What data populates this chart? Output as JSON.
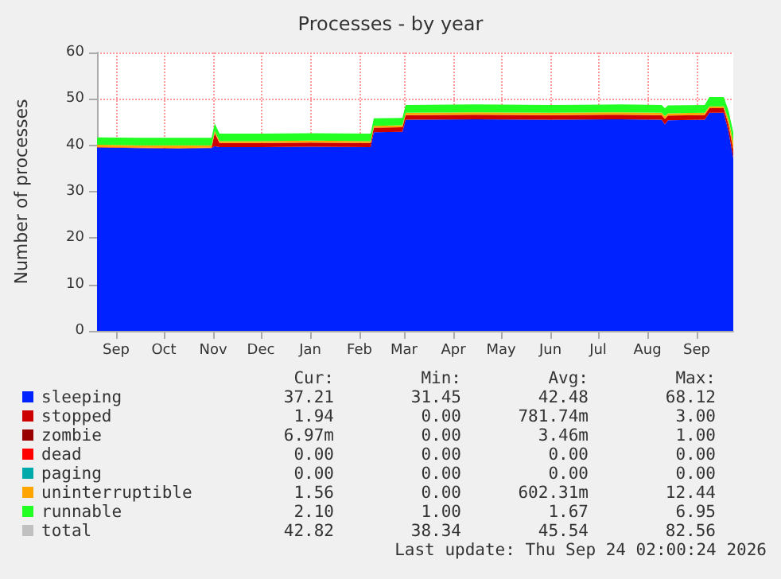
{
  "chart_data": {
    "type": "area",
    "title": "Processes - by year",
    "ylabel": "Number of processes",
    "stacked": true,
    "grid": true,
    "legend": "bottom",
    "x": [
      "2025-08-20",
      "2025-09-15",
      "2025-10-10",
      "2025-10-31",
      "2025-11-02",
      "2025-11-05",
      "2025-12-01",
      "2026-01-01",
      "2026-02-08",
      "2026-02-10",
      "2026-02-28",
      "2026-03-02",
      "2026-04-15",
      "2026-06-01",
      "2026-07-15",
      "2026-08-10",
      "2026-08-12",
      "2026-08-14",
      "2026-09-06",
      "2026-09-09",
      "2026-09-18",
      "2026-09-21",
      "2026-09-24"
    ],
    "series": [
      {
        "name": "sleeping",
        "color": "#0022ff",
        "values": [
          39.5,
          39.4,
          39.3,
          39.4,
          39.8,
          39.6,
          39.6,
          39.7,
          39.6,
          42.8,
          42.9,
          45.5,
          45.6,
          45.5,
          45.6,
          45.5,
          44.5,
          45.4,
          45.5,
          47.0,
          47.0,
          43.0,
          37.2
        ]
      },
      {
        "name": "stopped",
        "color": "#cc0000",
        "values": [
          0.1,
          0.1,
          0.1,
          0.1,
          2.8,
          0.9,
          0.9,
          0.9,
          0.9,
          1.0,
          1.0,
          1.0,
          1.0,
          1.0,
          1.0,
          1.0,
          1.2,
          1.0,
          1.0,
          1.0,
          1.0,
          1.5,
          1.9
        ]
      },
      {
        "name": "zombie",
        "color": "#990000",
        "values": [
          null,
          null,
          null,
          null,
          null,
          null,
          null,
          null,
          null,
          null,
          null,
          null,
          null,
          null,
          null,
          null,
          null,
          null,
          null,
          null,
          null,
          null,
          null
        ]
      },
      {
        "name": "dead",
        "color": "#ff0000",
        "values": [
          null,
          null,
          null,
          null,
          null,
          null,
          null,
          null,
          null,
          null,
          null,
          null,
          null,
          null,
          null,
          null,
          null,
          null,
          null,
          null,
          null,
          null,
          null
        ]
      },
      {
        "name": "paging",
        "color": "#00aaaa",
        "values": [
          null,
          null,
          null,
          null,
          null,
          null,
          null,
          null,
          null,
          null,
          null,
          null,
          null,
          null,
          null,
          null,
          null,
          null,
          null,
          null,
          null,
          null,
          null
        ]
      },
      {
        "name": "uninterruptible",
        "color": "#ffa500",
        "values": [
          0.5,
          0.5,
          0.6,
          0.5,
          0.5,
          0.4,
          0.4,
          0.4,
          0.4,
          0.4,
          0.4,
          0.5,
          0.5,
          0.5,
          0.5,
          0.5,
          0.6,
          0.5,
          0.5,
          0.4,
          0.4,
          1.2,
          1.6
        ]
      },
      {
        "name": "runnable",
        "color": "#22ff22",
        "values": [
          1.6,
          1.6,
          1.6,
          1.6,
          1.6,
          1.6,
          1.6,
          1.6,
          1.6,
          1.6,
          1.6,
          1.7,
          1.7,
          1.7,
          1.7,
          1.7,
          1.7,
          1.7,
          1.7,
          2.0,
          2.0,
          1.8,
          2.1
        ]
      },
      {
        "name": "total",
        "color": "#c0c0c0",
        "values": [
          null,
          null,
          null,
          null,
          null,
          null,
          null,
          null,
          null,
          null,
          null,
          null,
          null,
          null,
          null,
          null,
          null,
          null,
          null,
          null,
          null,
          null,
          null
        ]
      }
    ],
    "xlim": [
      "2025-08-20",
      "2026-09-24"
    ],
    "xticks": [
      {
        "value": "2025-09-01",
        "label": "Sep"
      },
      {
        "value": "2025-10-01",
        "label": "Oct"
      },
      {
        "value": "2025-11-01",
        "label": "Nov"
      },
      {
        "value": "2025-12-01",
        "label": "Dec"
      },
      {
        "value": "2026-01-01",
        "label": "Jan"
      },
      {
        "value": "2026-02-01",
        "label": "Feb"
      },
      {
        "value": "2026-03-01",
        "label": "Mar"
      },
      {
        "value": "2026-04-01",
        "label": "Apr"
      },
      {
        "value": "2026-05-01",
        "label": "May"
      },
      {
        "value": "2026-06-01",
        "label": "Jun"
      },
      {
        "value": "2026-07-01",
        "label": "Jul"
      },
      {
        "value": "2026-08-01",
        "label": "Aug"
      },
      {
        "value": "2026-09-01",
        "label": "Sep"
      }
    ],
    "ylim": [
      0,
      60
    ],
    "yticks": [
      0,
      10,
      20,
      30,
      40,
      50,
      60
    ],
    "annotations": [
      "Cur:",
      "Min:",
      "Avg:",
      "Max:",
      "37.21",
      "31.45",
      "42.48",
      "68.12",
      "1.94",
      "0.00",
      "781.74m",
      "3.00",
      "6.97m",
      "0.00",
      "3.46m",
      "1.00",
      "0.00",
      "0.00",
      "0.00",
      "0.00",
      "0.00",
      "0.00",
      "0.00",
      "0.00",
      "1.56",
      "0.00",
      "602.31m",
      "12.44",
      "2.10",
      "1.00",
      "1.67",
      "6.95",
      "42.82",
      "38.34",
      "45.54",
      "82.56",
      "Last update: Thu Sep 24 02:00:24 2026"
    ]
  }
}
